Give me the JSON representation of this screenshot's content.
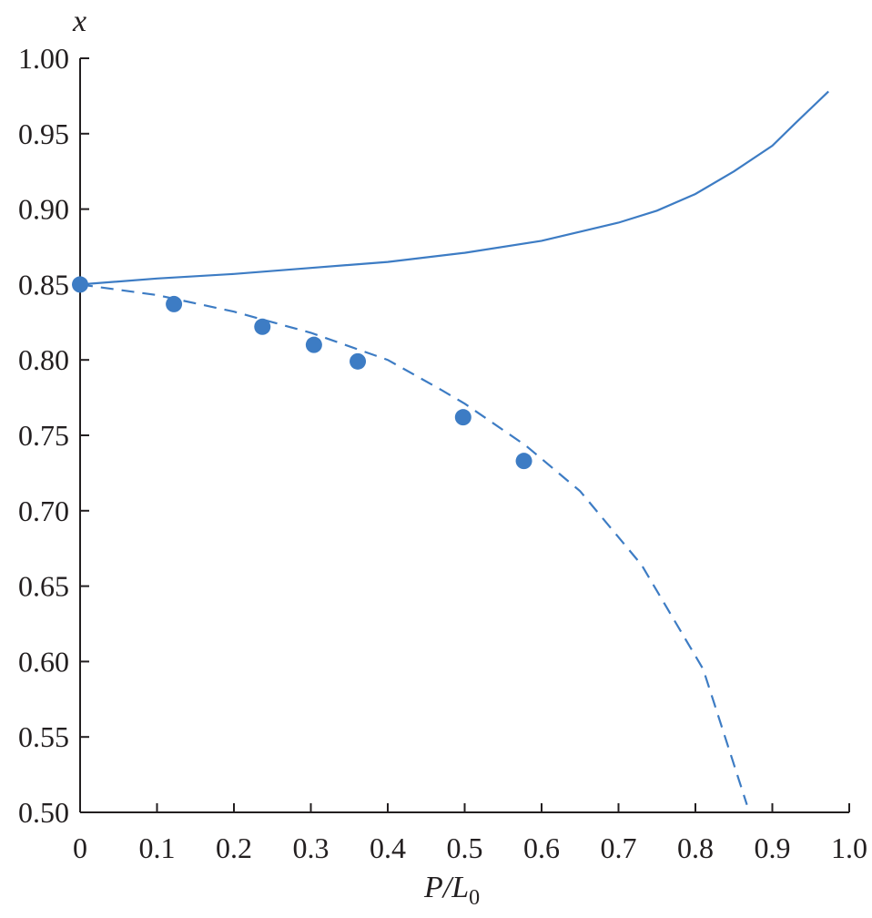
{
  "chart_data": {
    "type": "line",
    "xlabel": "P/L",
    "xlabel_sub": "0",
    "ylabel": "x",
    "xlim": [
      0,
      1.0
    ],
    "ylim": [
      0.5,
      1.0
    ],
    "grid": false,
    "xticks": [
      "0",
      "0.1",
      "0.2",
      "0.3",
      "0.4",
      "0.5",
      "0.6",
      "0.7",
      "0.8",
      "0.9",
      "1.0"
    ],
    "xtick_values": [
      0,
      0.1,
      0.2,
      0.3,
      0.4,
      0.5,
      0.6,
      0.7,
      0.8,
      0.9,
      1.0
    ],
    "yticks": [
      "0.50",
      "0.55",
      "0.60",
      "0.65",
      "0.70",
      "0.75",
      "0.80",
      "0.85",
      "0.90",
      "0.95",
      "1.00"
    ],
    "ytick_values": [
      0.5,
      0.55,
      0.6,
      0.65,
      0.7,
      0.75,
      0.8,
      0.85,
      0.9,
      0.95,
      1.0
    ],
    "colors": {
      "series": "#3d7cc4",
      "axis": "#231f20"
    },
    "series": [
      {
        "style": "solid",
        "x": [
          0,
          0.1,
          0.2,
          0.3,
          0.4,
          0.5,
          0.6,
          0.7,
          0.75,
          0.8,
          0.85,
          0.9,
          0.93,
          0.973
        ],
        "y": [
          0.85,
          0.854,
          0.857,
          0.861,
          0.865,
          0.871,
          0.879,
          0.891,
          0.899,
          0.91,
          0.925,
          0.942,
          0.957,
          0.978
        ]
      },
      {
        "style": "dashed",
        "x": [
          0,
          0.1,
          0.2,
          0.3,
          0.4,
          0.47,
          0.5,
          0.58,
          0.65,
          0.73,
          0.81,
          0.867
        ],
        "y": [
          0.85,
          0.843,
          0.832,
          0.818,
          0.8,
          0.78,
          0.771,
          0.743,
          0.713,
          0.664,
          0.595,
          0.505
        ]
      },
      {
        "style": "markers",
        "x": [
          0,
          0.122,
          0.237,
          0.304,
          0.361,
          0.498,
          0.577
        ],
        "y": [
          0.85,
          0.837,
          0.822,
          0.81,
          0.799,
          0.762,
          0.733
        ]
      }
    ]
  }
}
